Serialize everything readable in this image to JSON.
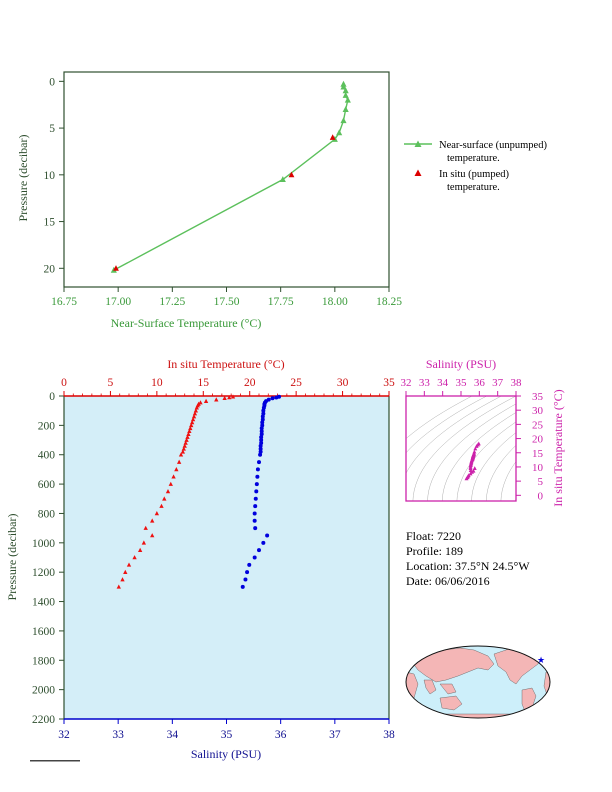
{
  "chart_data": [
    {
      "type": "line",
      "id": "near_surface",
      "xlabel": "Near-Surface Temperature (°C)",
      "ylabel": "Pressure (decibar)",
      "xlim": [
        16.75,
        18.25
      ],
      "ylim": [
        22,
        -1
      ],
      "xticks": [
        "16.75",
        "17.00",
        "17.25",
        "17.50",
        "17.75",
        "18.00",
        "18.25"
      ],
      "yticks": [
        "0",
        "5",
        "10",
        "15",
        "20"
      ],
      "legend": {
        "placement": "right",
        "line_label_1": "Near-surface (unpumped)",
        "line_label_2": "temperature.",
        "pt_label_1": "In situ (pumped)",
        "pt_label_2": "temperature."
      },
      "series": [
        {
          "name": "Near-surface (unpumped) temperature.",
          "x": [
            18.04,
            18.04,
            18.05,
            18.05,
            18.06,
            18.05,
            18.04,
            18.02,
            18.0,
            17.76,
            16.98
          ],
          "y": [
            0.3,
            0.6,
            1.0,
            1.5,
            2.0,
            3.0,
            4.2,
            5.5,
            6.2,
            10.5,
            20.2
          ]
        },
        {
          "name": "In situ (pumped) temperature.",
          "x": [
            17.99,
            17.8,
            16.99
          ],
          "y": [
            6.0,
            10.0,
            20.0
          ]
        }
      ]
    },
    {
      "type": "scatter",
      "id": "profile",
      "ylabel": "Pressure (decibar)",
      "top_xlabel": "In situ Temperature (°C)",
      "bottom_xlabel": "Salinity (PSU)",
      "temp_lim": [
        0,
        35
      ],
      "sal_lim": [
        32,
        38
      ],
      "ylim": [
        2200,
        0
      ],
      "temp_ticks": [
        "0",
        "5",
        "10",
        "15",
        "20",
        "25",
        "30",
        "35"
      ],
      "sal_ticks": [
        "32",
        "33",
        "34",
        "35",
        "36",
        "37",
        "38"
      ],
      "yticks": [
        "0",
        "200",
        "400",
        "600",
        "800",
        "1000",
        "1200",
        "1400",
        "1600",
        "1800",
        "2000",
        "2200"
      ],
      "temperature": {
        "p": [
          5,
          10,
          15,
          25,
          35,
          45,
          55,
          65,
          80,
          100,
          120,
          140,
          160,
          180,
          200,
          220,
          240,
          260,
          280,
          300,
          320,
          340,
          360,
          380,
          400,
          450,
          500,
          550,
          600,
          650,
          700,
          750,
          800,
          850,
          900,
          950,
          1000,
          1050,
          1100,
          1150,
          1200,
          1250,
          1300
        ],
        "v": [
          18.2,
          17.8,
          17.3,
          16.4,
          15.3,
          14.7,
          14.5,
          14.4,
          14.3,
          14.2,
          14.1,
          14.0,
          13.9,
          13.8,
          13.7,
          13.6,
          13.5,
          13.4,
          13.3,
          13.2,
          13.1,
          13.0,
          12.9,
          12.8,
          12.6,
          12.4,
          12.1,
          11.8,
          11.5,
          11.2,
          10.8,
          10.5,
          10.0,
          9.5,
          8.8,
          9.5,
          8.6,
          8.2,
          7.6,
          7.0,
          6.6,
          6.3,
          5.9
        ]
      },
      "salinity": {
        "p": [
          5,
          10,
          15,
          25,
          35,
          45,
          55,
          65,
          80,
          100,
          120,
          140,
          160,
          180,
          200,
          220,
          240,
          260,
          280,
          300,
          320,
          340,
          360,
          380,
          400,
          450,
          500,
          550,
          600,
          650,
          700,
          750,
          800,
          850,
          900,
          950,
          1000,
          1050,
          1100,
          1150,
          1200,
          1250,
          1300
        ],
        "v": [
          35.97,
          35.92,
          35.85,
          35.78,
          35.73,
          35.71,
          35.7,
          35.7,
          35.69,
          35.68,
          35.68,
          35.67,
          35.67,
          35.66,
          35.66,
          35.65,
          35.65,
          35.65,
          35.64,
          35.64,
          35.64,
          35.63,
          35.63,
          35.63,
          35.62,
          35.6,
          35.58,
          35.57,
          35.56,
          35.55,
          35.54,
          35.53,
          35.52,
          35.52,
          35.53,
          35.75,
          35.68,
          35.6,
          35.52,
          35.42,
          35.38,
          35.35,
          35.3
        ]
      }
    },
    {
      "type": "scatter",
      "id": "ts_inset",
      "top_xlabel": "Salinity (PSU)",
      "right_ylabel": "In situ Temperature (°C)",
      "sal_lim": [
        32,
        38
      ],
      "temp_lim": [
        -2,
        35
      ],
      "sal_ticks": [
        "32",
        "33",
        "34",
        "35",
        "36",
        "37",
        "38"
      ],
      "temp_ticks": [
        "0",
        "5",
        "10",
        "15",
        "20",
        "25",
        "30",
        "35"
      ]
    }
  ],
  "info": {
    "float": "Float:  7220",
    "profile": "Profile:  189",
    "location": "Location:  37.5°N  24.5°W",
    "date": "Date:  06/06/2016"
  },
  "colors": {
    "near_surface_green": "#5cc05c",
    "insitu_red": "#dd0000",
    "temperature_red": "#ee1111",
    "salinity_blue": "#0000dd",
    "profile_background": "#d4eef8",
    "ts_accent": "#cc22aa",
    "land": "#f4b6b6",
    "ocean": "#cdeffa"
  },
  "map": {
    "marker": "star-icon"
  }
}
